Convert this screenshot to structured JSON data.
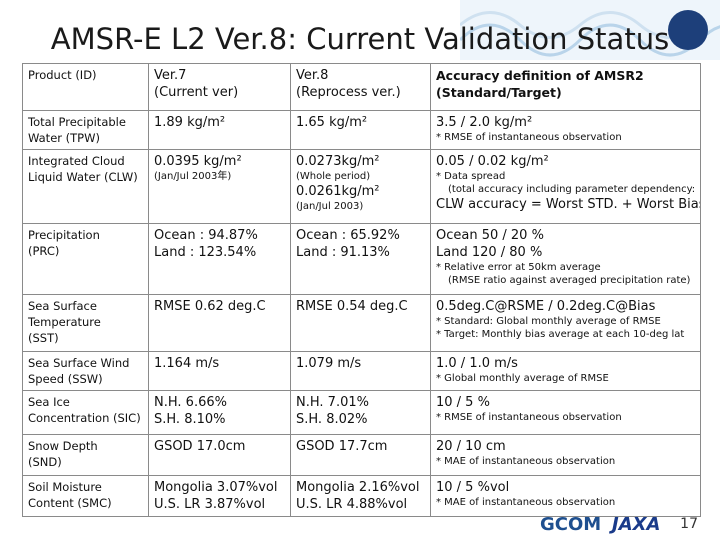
{
  "header": {
    "title": "AMSR-E L2 Ver.8: Current Validation Status"
  },
  "table": {
    "header": [
      [
        "Product (ID)"
      ],
      [
        "Ver.7",
        "(Current ver)"
      ],
      [
        "Ver.8",
        "(Reprocess ver.)"
      ],
      [
        "Accuracy definition of AMSR2",
        "(Standard/Target)"
      ]
    ],
    "rows": [
      [
        [
          "Total Precipitable",
          "Water (TPW)"
        ],
        [
          "1.89 kg/m²"
        ],
        [
          "1.65 kg/m²"
        ],
        [
          "3.5 / 2.0 kg/m²",
          "* RMSE of instantaneous observation"
        ]
      ],
      [
        [
          "Integrated Cloud",
          "Liquid Water (CLW)"
        ],
        [
          "0.0395 kg/m²",
          "(Jan/Jul 2003年)"
        ],
        [
          "0.0273kg/m²",
          "(Whole period)",
          "0.0261kg/m²",
          "(Jan/Jul 2003)"
        ],
        [
          "0.05 / 0.02 kg/m²",
          "* Data spread",
          "(total accuracy including parameter dependency:",
          "CLW accuracy = Worst STD. + Worst Bias)"
        ]
      ],
      [
        [
          "Precipitation",
          "(PRC)"
        ],
        [
          "Ocean : 94.87%",
          "Land : 123.54%"
        ],
        [
          "Ocean : 65.92%",
          "Land : 91.13%"
        ],
        [
          "Ocean 50 / 20 %",
          "Land 120 / 80 %",
          "* Relative error at 50km average",
          "(RMSE ratio against averaged precipitation rate)"
        ]
      ],
      [
        [
          "Sea Surface",
          "Temperature",
          "(SST)"
        ],
        [
          "RMSE 0.62 deg.C"
        ],
        [
          "RMSE 0.54 deg.C"
        ],
        [
          "0.5deg.C@RSME / 0.2deg.C@Bias",
          "* Standard: Global monthly average of RMSE",
          "* Target: Monthly bias average at each 10-deg lat"
        ]
      ],
      [
        [
          "Sea Surface Wind",
          "Speed (SSW)"
        ],
        [
          "1.164 m/s"
        ],
        [
          "1.079 m/s"
        ],
        [
          "1.0 / 1.0 m/s",
          "* Global monthly average of RMSE"
        ]
      ],
      [
        [
          "Sea Ice",
          "Concentration (SIC)"
        ],
        [
          "N.H. 6.66%",
          "S.H. 8.10%"
        ],
        [
          "N.H. 7.01%",
          "S.H. 8.02%"
        ],
        [
          "10 / 5 %",
          "* RMSE of instantaneous observation"
        ]
      ],
      [
        [
          "Snow Depth",
          "(SND)"
        ],
        [
          "GSOD 17.0cm"
        ],
        [
          "GSOD 17.7cm"
        ],
        [
          "20 / 10 cm",
          "* MAE of instantaneous observation"
        ]
      ],
      [
        [
          "Soil Moisture",
          "Content (SMC)"
        ],
        [
          "Mongolia 3.07%vol",
          "U.S. LR 3.87%vol"
        ],
        [
          "Mongolia 2.16%vol",
          "U.S. LR 4.88%vol"
        ],
        [
          "10 / 5 %vol",
          "* MAE of instantaneous observation"
        ]
      ]
    ]
  },
  "footer": {
    "logos": [
      "GCOM",
      "JAXA"
    ],
    "page_number": "17"
  }
}
